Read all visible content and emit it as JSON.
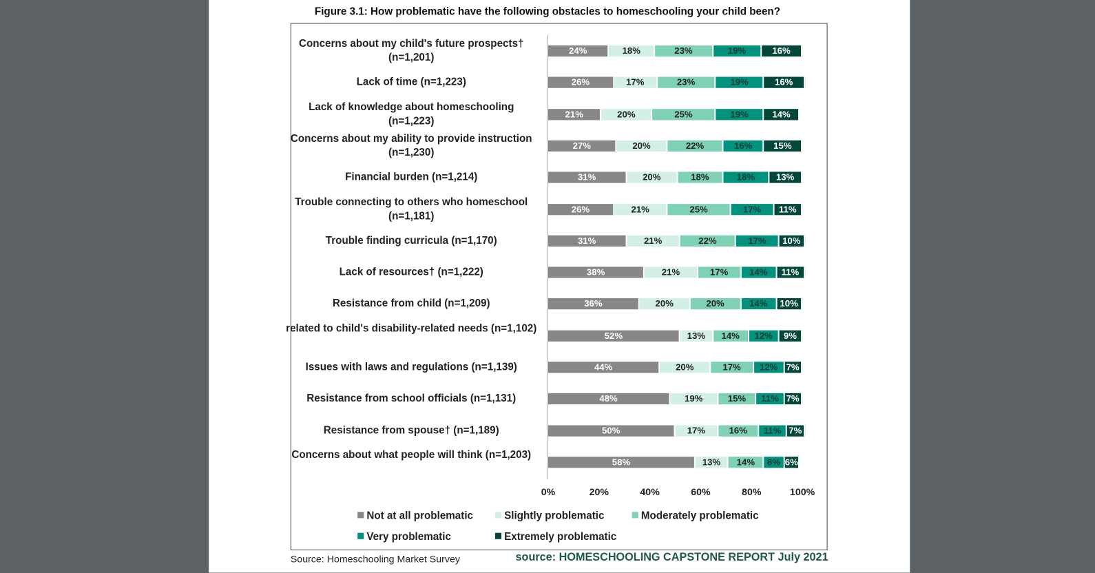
{
  "chart_data": {
    "type": "bar",
    "orientation": "horizontal",
    "stacked": "100%",
    "title": "Figure 3.1: How problematic have the following obstacles to homeschooling your child been?",
    "categories": [
      "Concerns about my child's future prospects† (n=1,201)",
      "Lack of time (n=1,223)",
      "Lack of knowledge about homeschooling (n=1,223)",
      "Concerns about my ability to provide instruction (n=1,230)",
      "Financial burden (n=1,214)",
      "Trouble connecting to others who homeschool (n=1,181)",
      "Trouble finding curricula (n=1,170)",
      "Lack of resources† (n=1,222)",
      "Resistance from child (n=1,209)",
      "related to child's disability-related needs (n=1,102)",
      "Issues with laws and regulations (n=1,139)",
      "Resistance from school officials (n=1,131)",
      "Resistance from spouse† (n=1,189)",
      "Concerns about what people will think (n=1,203)"
    ],
    "series": [
      {
        "name": "Not at all problematic",
        "color": "#878787",
        "text": "#ffffff",
        "values": [
          24,
          26,
          21,
          27,
          31,
          26,
          31,
          38,
          36,
          52,
          44,
          48,
          50,
          58
        ]
      },
      {
        "name": "Slightly problematic",
        "color": "#d4efe6",
        "text": "#222222",
        "values": [
          18,
          17,
          20,
          20,
          20,
          21,
          21,
          21,
          20,
          13,
          20,
          19,
          17,
          13
        ]
      },
      {
        "name": "Moderately problematic",
        "color": "#7fd1b6",
        "text": "#222222",
        "values": [
          23,
          23,
          25,
          22,
          18,
          25,
          22,
          17,
          20,
          14,
          17,
          15,
          16,
          14
        ]
      },
      {
        "name": "Very problematic",
        "color": "#00927c",
        "text": "#1d3b33",
        "values": [
          19,
          19,
          19,
          16,
          18,
          17,
          17,
          14,
          14,
          12,
          12,
          11,
          11,
          8
        ]
      },
      {
        "name": "Extremely problematic",
        "color": "#03473a",
        "text": "#ffffff",
        "values": [
          16,
          16,
          14,
          15,
          13,
          11,
          10,
          11,
          10,
          9,
          7,
          7,
          7,
          6
        ]
      }
    ],
    "xlim": [
      0,
      100
    ],
    "xticks": [
      "0%",
      "20%",
      "40%",
      "60%",
      "80%",
      "100%"
    ],
    "legend_position": "bottom",
    "grid": false
  },
  "footer": {
    "source_left": "Source: Homeschooling Market Survey",
    "source_right": "source: HOMESCHOOLING CAPSTONE REPORT July 2021"
  }
}
